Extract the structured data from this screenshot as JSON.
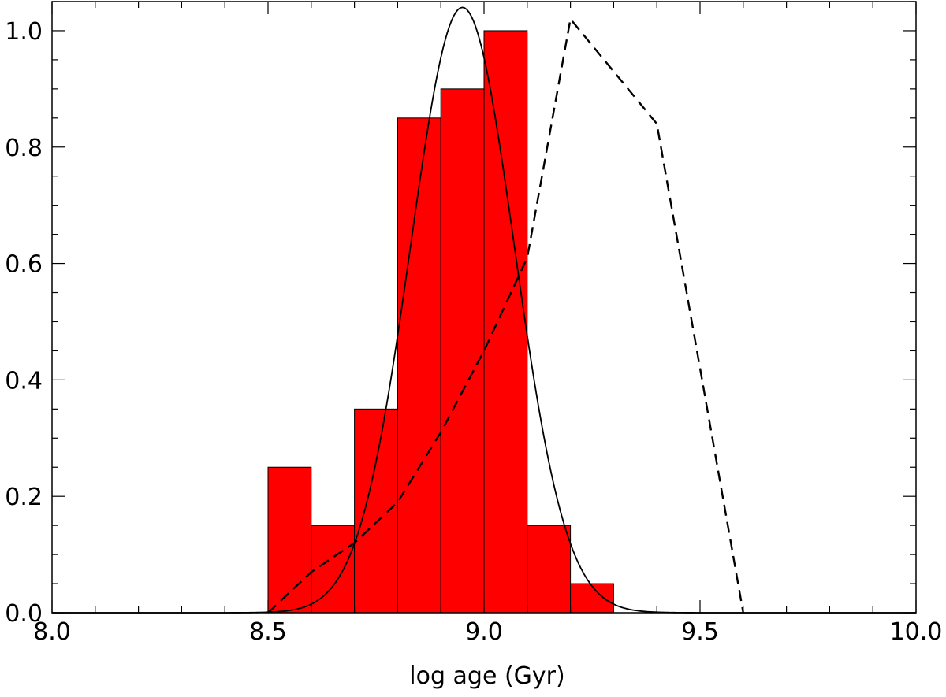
{
  "chart_data": {
    "type": "bar",
    "xlabel": "log age (Gyr)",
    "ylabel": "",
    "title": "",
    "xlim": [
      8.0,
      10.0
    ],
    "ylim": [
      0.0,
      1.05
    ],
    "x_ticks": [
      "8.0",
      "8.5",
      "9.0",
      "9.5",
      "10.0"
    ],
    "x_tick_values": [
      8.0,
      8.5,
      9.0,
      9.5,
      10.0
    ],
    "y_ticks": [
      "0.0",
      "0.2",
      "0.4",
      "0.6",
      "0.8",
      "1.0"
    ],
    "y_tick_values": [
      0.0,
      0.2,
      0.4,
      0.6,
      0.8,
      1.0
    ],
    "x_minor_step": 0.1,
    "y_minor_step": 0.05,
    "grid": false,
    "histogram": {
      "color": "#ff0000",
      "bin_width": 0.1,
      "bin_starts": [
        8.5,
        8.6,
        8.7,
        8.8,
        8.9,
        9.0,
        9.1,
        9.2
      ],
      "values": [
        0.25,
        0.15,
        0.35,
        0.85,
        0.9,
        1.0,
        0.15,
        0.05
      ]
    },
    "gaussian_curve": {
      "style": "solid",
      "color": "#000000",
      "mean": 8.95,
      "sigma": 0.12,
      "amplitude": 1.04
    },
    "dashed_curve": {
      "style": "dashed",
      "color": "#000000",
      "x": [
        8.5,
        8.6,
        8.7,
        8.8,
        8.9,
        9.0,
        9.1,
        9.2,
        9.4,
        9.6
      ],
      "y": [
        0.0,
        0.07,
        0.12,
        0.19,
        0.31,
        0.45,
        0.61,
        1.02,
        0.84,
        0.0
      ]
    }
  }
}
